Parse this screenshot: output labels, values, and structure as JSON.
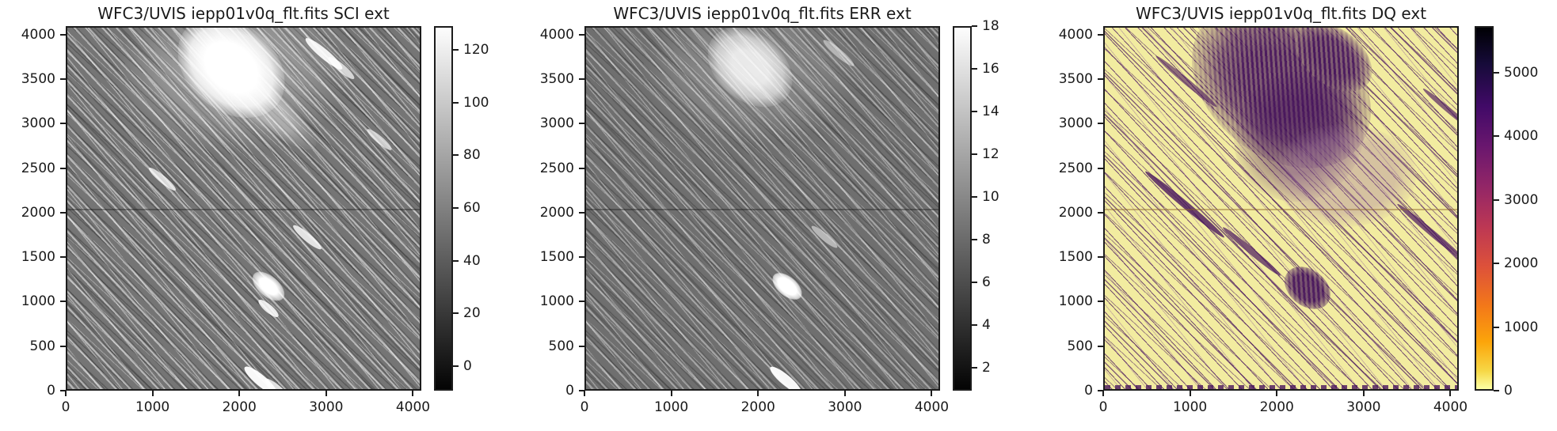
{
  "panels": [
    {
      "id": "sci",
      "title": "WFC3/UVIS iepp01v0q_flt.fits SCI ext",
      "colorbar": {
        "colormap": "gray",
        "ticks": [
          120,
          100,
          80,
          60,
          40,
          20,
          0
        ],
        "vmin": -9.3,
        "vmax": 129
      }
    },
    {
      "id": "err",
      "title": "WFC3/UVIS iepp01v0q_flt.fits ERR ext",
      "colorbar": {
        "colormap": "gray",
        "ticks": [
          18,
          16,
          14,
          12,
          10,
          8,
          6,
          4,
          2
        ],
        "vmin": 0.93,
        "vmax": 18
      }
    },
    {
      "id": "dq",
      "title": "WFC3/UVIS iepp01v0q_flt.fits DQ ext",
      "colorbar": {
        "colormap": "inferno_r",
        "ticks": [
          5000,
          4000,
          3000,
          2000,
          1000,
          0
        ],
        "vmin": 0,
        "vmax": 5734
      }
    }
  ],
  "axes": {
    "x_ticks": [
      0,
      1000,
      2000,
      3000,
      4000
    ],
    "y_ticks": [
      0,
      500,
      1000,
      1500,
      2000,
      2500,
      3000,
      3500,
      4000
    ],
    "data_extent": 4096
  },
  "chart_data": [
    {
      "type": "heatmap",
      "title": "WFC3/UVIS iepp01v0q_flt.fits SCI ext",
      "x_range": [
        0,
        4096
      ],
      "y_range": [
        0,
        4096
      ],
      "x_ticks": [
        0,
        1000,
        2000,
        3000,
        4000
      ],
      "y_ticks": [
        0,
        500,
        1000,
        1500,
        2000,
        2500,
        3000,
        3500,
        4000
      ],
      "colormap": "gray",
      "colorbar_ticks": [
        0,
        20,
        40,
        60,
        80,
        100,
        120
      ],
      "colorbar_range": [
        -9,
        129
      ],
      "legend_position": "right",
      "grid": false,
      "features": [
        "dense diagonal streaks (upper-left to lower-right) across whole frame",
        "large saturated bright blob near x=1900, y=3600",
        "small bright blob near x=2350, y=1150",
        "bright streak near x=2000, y=100",
        "thin dark horizontal chip-gap line at y=2048"
      ]
    },
    {
      "type": "heatmap",
      "title": "WFC3/UVIS iepp01v0q_flt.fits ERR ext",
      "x_range": [
        0,
        4096
      ],
      "y_range": [
        0,
        4096
      ],
      "x_ticks": [
        0,
        1000,
        2000,
        3000,
        4000
      ],
      "y_ticks": [
        0,
        500,
        1000,
        1500,
        2000,
        2500,
        3000,
        3500,
        4000
      ],
      "colormap": "gray",
      "colorbar_ticks": [
        2,
        4,
        6,
        8,
        10,
        12,
        14,
        16,
        18
      ],
      "colorbar_range": [
        1,
        18
      ],
      "legend_position": "right",
      "grid": false,
      "features": [
        "same diagonal streak field as SCI, slightly fainter",
        "diffuse bright blob near x=1900, y=3600",
        "compact bright blob near x=2350, y=1150",
        "bright streak near x=2200, y=60",
        "thin dark horizontal chip-gap line at y=2048"
      ]
    },
    {
      "type": "heatmap",
      "title": "WFC3/UVIS iepp01v0q_flt.fits DQ ext",
      "x_range": [
        0,
        4096
      ],
      "y_range": [
        0,
        4096
      ],
      "x_ticks": [
        0,
        1000,
        2000,
        3000,
        4000
      ],
      "y_ticks": [
        0,
        500,
        1000,
        1500,
        2000,
        2500,
        3000,
        3500,
        4000
      ],
      "colormap": "inferno_r",
      "colorbar_ticks": [
        0,
        1000,
        2000,
        3000,
        4000,
        5000
      ],
      "colorbar_range": [
        0,
        5700
      ],
      "legend_position": "right",
      "grid": false,
      "features": [
        "pale-yellow background with purple flagged diagonal streaks",
        "dense purple cluster near x=1850, y=3550 with smaller clump near x=2500, y=3800",
        "dense purple clump near x=2350, y=1150",
        "speckled row along bottom edge"
      ]
    }
  ]
}
